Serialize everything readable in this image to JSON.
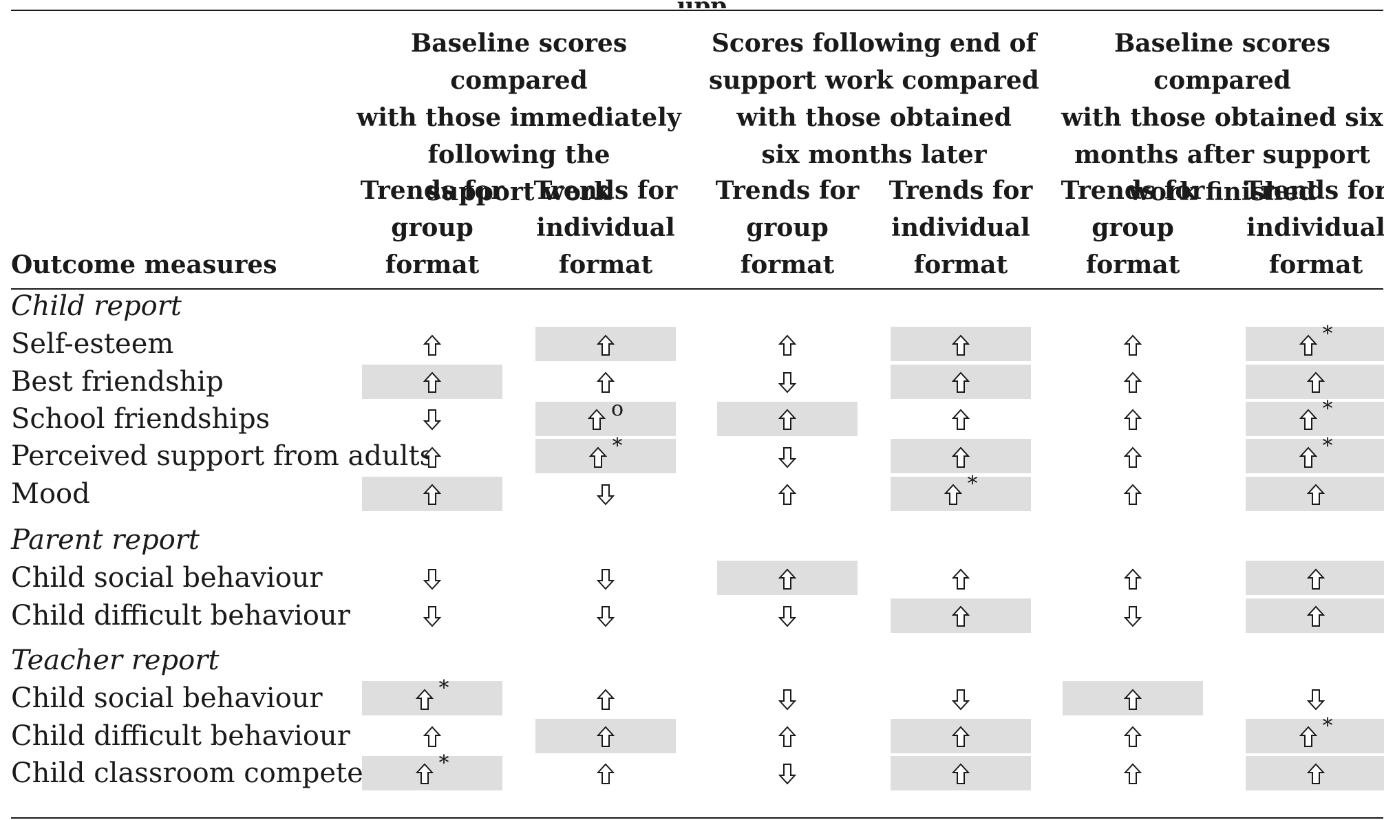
{
  "table": {
    "title_fragment": "upp",
    "outcome_header": "Outcome measures",
    "column_groups": [
      {
        "lines": [
          "Baseline scores compared",
          "with those immediately",
          "following the",
          "support work"
        ]
      },
      {
        "lines": [
          "Scores following end of",
          "support work compared",
          "with those obtained",
          "six months later"
        ]
      },
      {
        "lines": [
          "Baseline scores compared",
          "with those obtained six",
          "months after support",
          "work finished"
        ]
      }
    ],
    "sub_headers": [
      {
        "lines": [
          "Trends for",
          "group",
          "format"
        ]
      },
      {
        "lines": [
          "Trends for",
          "individual",
          "format"
        ]
      },
      {
        "lines": [
          "Trends for",
          "group",
          "format"
        ]
      },
      {
        "lines": [
          "Trends for",
          "individual",
          "format"
        ]
      },
      {
        "lines": [
          "Trends for",
          "group",
          "format"
        ]
      },
      {
        "lines": [
          "Trends for",
          "individual",
          "format"
        ]
      }
    ],
    "sections": [
      {
        "label": "Child report",
        "rows": [
          {
            "label": "Self-esteem",
            "cells": [
              {
                "dir": "up",
                "shaded": false,
                "sig": ""
              },
              {
                "dir": "up",
                "shaded": true,
                "sig": ""
              },
              {
                "dir": "up",
                "shaded": false,
                "sig": ""
              },
              {
                "dir": "up",
                "shaded": true,
                "sig": ""
              },
              {
                "dir": "up",
                "shaded": false,
                "sig": ""
              },
              {
                "dir": "up",
                "shaded": true,
                "sig": "*"
              }
            ]
          },
          {
            "label": "Best friendship",
            "cells": [
              {
                "dir": "up",
                "shaded": true,
                "sig": ""
              },
              {
                "dir": "up",
                "shaded": false,
                "sig": ""
              },
              {
                "dir": "down",
                "shaded": false,
                "sig": ""
              },
              {
                "dir": "up",
                "shaded": true,
                "sig": ""
              },
              {
                "dir": "up",
                "shaded": false,
                "sig": ""
              },
              {
                "dir": "up",
                "shaded": true,
                "sig": ""
              }
            ]
          },
          {
            "label": "School friendships",
            "cells": [
              {
                "dir": "down",
                "shaded": false,
                "sig": ""
              },
              {
                "dir": "up",
                "shaded": true,
                "sig": "o"
              },
              {
                "dir": "up",
                "shaded": true,
                "sig": ""
              },
              {
                "dir": "up",
                "shaded": false,
                "sig": ""
              },
              {
                "dir": "up",
                "shaded": false,
                "sig": ""
              },
              {
                "dir": "up",
                "shaded": true,
                "sig": "*"
              }
            ]
          },
          {
            "label": "Perceived support from adults",
            "cells": [
              {
                "dir": "up",
                "shaded": false,
                "sig": ""
              },
              {
                "dir": "up",
                "shaded": true,
                "sig": "*"
              },
              {
                "dir": "down",
                "shaded": false,
                "sig": ""
              },
              {
                "dir": "up",
                "shaded": true,
                "sig": ""
              },
              {
                "dir": "up",
                "shaded": false,
                "sig": ""
              },
              {
                "dir": "up",
                "shaded": true,
                "sig": "*"
              }
            ]
          },
          {
            "label": "Mood",
            "cells": [
              {
                "dir": "up",
                "shaded": true,
                "sig": ""
              },
              {
                "dir": "down",
                "shaded": false,
                "sig": ""
              },
              {
                "dir": "up",
                "shaded": false,
                "sig": ""
              },
              {
                "dir": "up",
                "shaded": true,
                "sig": "*"
              },
              {
                "dir": "up",
                "shaded": false,
                "sig": ""
              },
              {
                "dir": "up",
                "shaded": true,
                "sig": ""
              }
            ]
          }
        ]
      },
      {
        "label": "Parent report",
        "rows": [
          {
            "label": "Child social behaviour",
            "cells": [
              {
                "dir": "down",
                "shaded": false,
                "sig": ""
              },
              {
                "dir": "down",
                "shaded": false,
                "sig": ""
              },
              {
                "dir": "up",
                "shaded": true,
                "sig": ""
              },
              {
                "dir": "up",
                "shaded": false,
                "sig": ""
              },
              {
                "dir": "up",
                "shaded": false,
                "sig": ""
              },
              {
                "dir": "up",
                "shaded": true,
                "sig": ""
              }
            ]
          },
          {
            "label": "Child difficult behaviour",
            "cells": [
              {
                "dir": "down",
                "shaded": false,
                "sig": ""
              },
              {
                "dir": "down",
                "shaded": false,
                "sig": ""
              },
              {
                "dir": "down",
                "shaded": false,
                "sig": ""
              },
              {
                "dir": "up",
                "shaded": true,
                "sig": ""
              },
              {
                "dir": "down",
                "shaded": false,
                "sig": ""
              },
              {
                "dir": "up",
                "shaded": true,
                "sig": ""
              }
            ]
          }
        ]
      },
      {
        "label": "Teacher report",
        "rows": [
          {
            "label": "Child social behaviour",
            "cells": [
              {
                "dir": "up",
                "shaded": true,
                "sig": "*"
              },
              {
                "dir": "up",
                "shaded": false,
                "sig": ""
              },
              {
                "dir": "down",
                "shaded": false,
                "sig": ""
              },
              {
                "dir": "down",
                "shaded": false,
                "sig": ""
              },
              {
                "dir": "up",
                "shaded": true,
                "sig": ""
              },
              {
                "dir": "down",
                "shaded": false,
                "sig": ""
              }
            ]
          },
          {
            "label": "Child difficult behaviour",
            "cells": [
              {
                "dir": "up",
                "shaded": false,
                "sig": ""
              },
              {
                "dir": "up",
                "shaded": true,
                "sig": ""
              },
              {
                "dir": "up",
                "shaded": false,
                "sig": ""
              },
              {
                "dir": "up",
                "shaded": true,
                "sig": ""
              },
              {
                "dir": "up",
                "shaded": false,
                "sig": ""
              },
              {
                "dir": "up",
                "shaded": true,
                "sig": "*"
              }
            ]
          },
          {
            "label": "Child classroom competence",
            "cells": [
              {
                "dir": "up",
                "shaded": true,
                "sig": "*"
              },
              {
                "dir": "up",
                "shaded": false,
                "sig": ""
              },
              {
                "dir": "down",
                "shaded": false,
                "sig": ""
              },
              {
                "dir": "up",
                "shaded": true,
                "sig": ""
              },
              {
                "dir": "up",
                "shaded": false,
                "sig": ""
              },
              {
                "dir": "up",
                "shaded": true,
                "sig": ""
              }
            ]
          }
        ]
      }
    ]
  }
}
